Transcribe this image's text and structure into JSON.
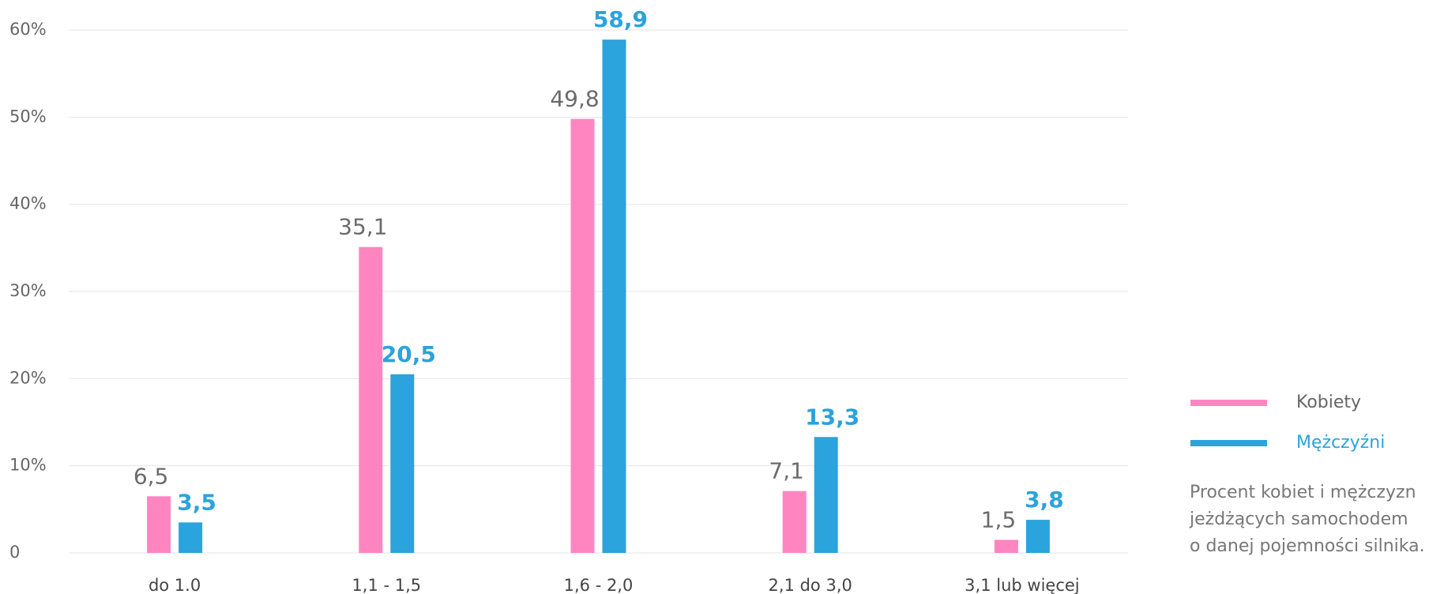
{
  "chart_data": {
    "type": "bar",
    "categories": [
      "do 1.0",
      "1,1 - 1,5",
      "1,6 - 2,0",
      "2,1 do 3,0",
      "3,1 lub więcej"
    ],
    "series": [
      {
        "name": "Kobiety",
        "color": "#ff85c0",
        "values": [
          6.5,
          35.1,
          49.8,
          7.1,
          1.5
        ],
        "value_labels": [
          "6,5",
          "35,1",
          "49,8",
          "7,1",
          "1,5"
        ]
      },
      {
        "name": "Mężczyźni",
        "color": "#2ba3dc",
        "values": [
          3.5,
          20.5,
          58.9,
          13.3,
          3.8
        ],
        "value_labels": [
          "3,5",
          "20,5",
          "58,9",
          "13,3",
          "3,8"
        ]
      }
    ],
    "ylim": [
      0,
      60
    ],
    "yticks": [
      0,
      {
        "value": 10,
        "label": "10%"
      },
      {
        "value": 20,
        "label": "20%"
      },
      {
        "value": 30,
        "label": "30%"
      },
      {
        "value": 40,
        "label": "40%"
      },
      {
        "value": 50,
        "label": "50%"
      },
      {
        "value": 60,
        "label": "60%"
      }
    ],
    "grid": true,
    "legend": "right",
    "note": [
      "Procent kobiet i mężczyzn",
      "jeżdżących samochodem",
      "o danej pojemności silnika."
    ]
  }
}
